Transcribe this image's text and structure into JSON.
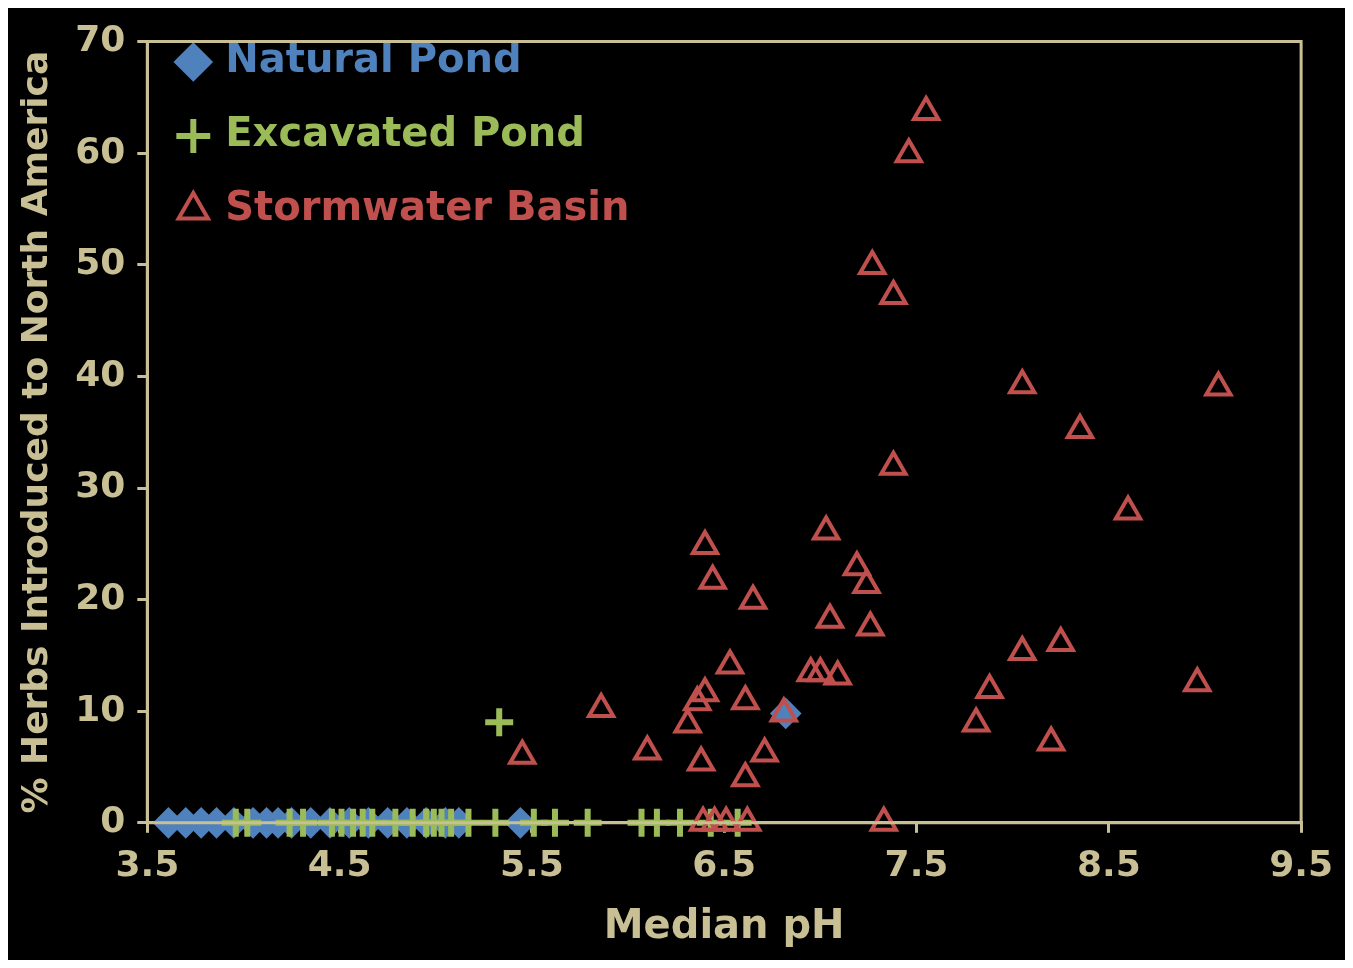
{
  "chart_data": {
    "type": "scatter",
    "xlabel": "Median pH",
    "ylabel": "% Herbs Introduced to North America",
    "xlim": [
      3.5,
      9.5
    ],
    "xticks": [
      3.5,
      4.5,
      5.5,
      6.5,
      7.5,
      8.5,
      9.5
    ],
    "ylim": [
      0,
      70
    ],
    "yticks": [
      0,
      10,
      20,
      30,
      40,
      50,
      60,
      70
    ],
    "grid": false,
    "legend": "top left",
    "series": [
      {
        "name": "Natural Pond",
        "color": "#4f81bd",
        "marker": "diamond",
        "x": [
          3.61,
          3.7,
          3.78,
          3.86,
          3.95,
          4.05,
          4.12,
          4.18,
          4.25,
          4.35,
          4.45,
          4.55,
          4.65,
          4.75,
          4.85,
          4.95,
          5.05,
          5.12,
          5.44,
          6.82
        ],
        "values": [
          0,
          0,
          0,
          0,
          0,
          0,
          0,
          0,
          0,
          0,
          0,
          0,
          0,
          0,
          0,
          0,
          0,
          0,
          0,
          9.8
        ]
      },
      {
        "name": "Excavated Pond",
        "color": "#9bbb59",
        "marker": "cross",
        "x": [
          3.96,
          4.02,
          4.24,
          4.31,
          4.46,
          4.51,
          4.57,
          4.62,
          4.67,
          4.79,
          4.88,
          4.95,
          4.99,
          5.03,
          5.08,
          5.17,
          5.31,
          5.51,
          5.62,
          5.79,
          6.07,
          6.15,
          6.27,
          6.43,
          6.57,
          5.33
        ],
        "values": [
          0,
          0,
          0,
          0,
          0,
          0,
          0,
          0,
          0,
          0,
          0,
          0,
          0,
          0,
          0,
          0,
          0,
          0,
          0,
          0,
          0,
          0,
          0,
          0,
          0,
          9
        ]
      },
      {
        "name": "Stormwater Basin",
        "color": "#c0504d",
        "marker": "triangle",
        "x": [
          7.55,
          7.46,
          7.27,
          7.38,
          8.05,
          9.07,
          8.35,
          7.38,
          8.6,
          6.4,
          7.03,
          7.19,
          7.24,
          6.44,
          6.65,
          7.05,
          7.26,
          8.05,
          8.25,
          6.53,
          6.95,
          7.0,
          7.09,
          8.96,
          7.88,
          6.4,
          6.36,
          6.61,
          5.86,
          6.81,
          6.31,
          7.81,
          6.1,
          8.2,
          6.71,
          5.45,
          6.38,
          6.61,
          7.33,
          6.39,
          6.45,
          6.51,
          6.62
        ],
        "values": [
          63.7,
          59.9,
          49.9,
          47.2,
          39.2,
          39,
          35.2,
          31.9,
          27.9,
          24.8,
          26.1,
          22.9,
          21.3,
          21.7,
          19.9,
          18.2,
          17.5,
          15.3,
          16.1,
          14.1,
          13.4,
          13.4,
          13.1,
          12.5,
          11.9,
          11.6,
          10.8,
          10.9,
          10.2,
          9.8,
          8.8,
          8.9,
          6.4,
          7.2,
          6.2,
          6,
          5.4,
          4,
          0,
          0,
          0,
          0,
          0
        ]
      }
    ]
  }
}
